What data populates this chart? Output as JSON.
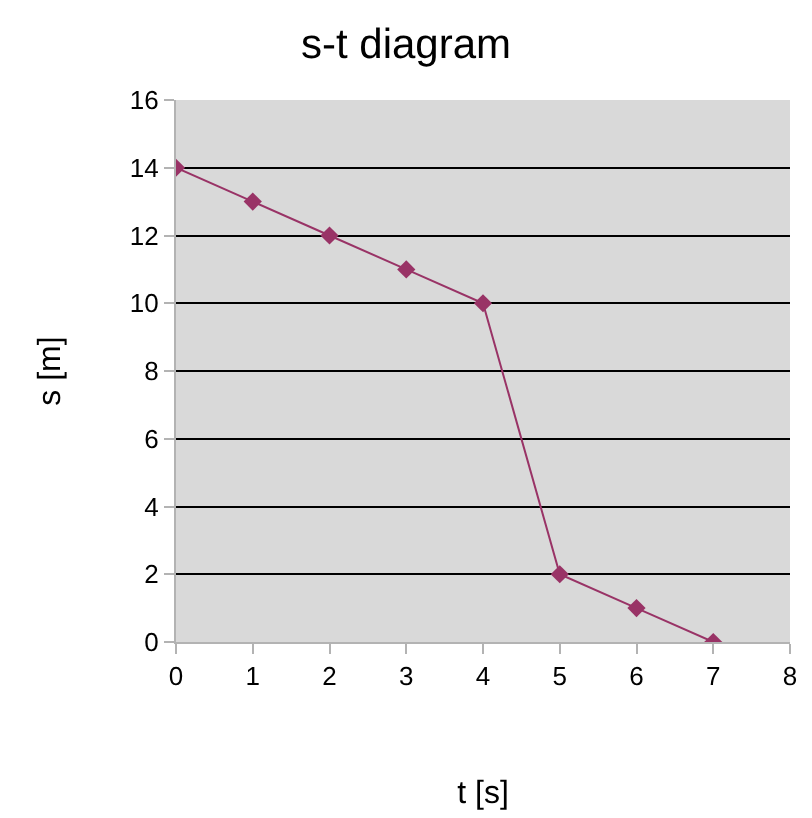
{
  "chart_data": {
    "type": "line",
    "title": "s-t diagram",
    "xlabel": "t [s]",
    "ylabel": "s [m]",
    "x": [
      0,
      1,
      2,
      3,
      4,
      5,
      6,
      7
    ],
    "series": [
      {
        "color": "#993366",
        "values": [
          14,
          13,
          12,
          11,
          10,
          2,
          1,
          0
        ]
      }
    ],
    "xlim": [
      0,
      8
    ],
    "xticks": [
      0,
      1,
      2,
      3,
      4,
      5,
      6,
      7,
      8
    ],
    "ylim": [
      0,
      16
    ],
    "yticks": [
      0,
      2,
      4,
      6,
      8,
      10,
      12,
      14,
      16
    ],
    "grid": "y",
    "marker": "diamond",
    "line_style": "solid"
  }
}
